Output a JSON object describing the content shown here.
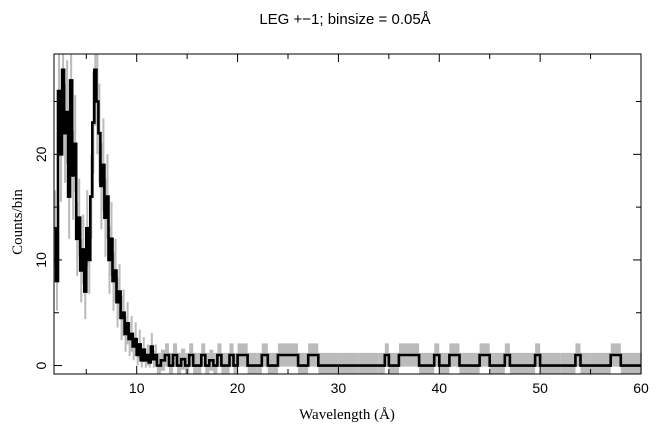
{
  "chart_data": {
    "type": "line",
    "title": "LEG +−1; binsize = 0.05Å",
    "xlabel": "Wavelength (Å)",
    "ylabel": "Counts/bin",
    "xlim": [
      1.8,
      60
    ],
    "ylim": [
      -0.8,
      29.5
    ],
    "xticks": [
      10,
      20,
      30,
      40,
      50,
      60
    ],
    "yticks": [
      0,
      10,
      20
    ],
    "grid": false,
    "legend": "none",
    "colors": {
      "counts": "#000000",
      "errors": "#bbbbbb"
    },
    "series": [
      {
        "x": [
          1.8,
          2.0,
          2.2,
          2.4,
          2.6,
          2.8,
          3.0,
          3.2,
          3.4,
          3.6,
          3.8,
          4.0,
          4.2,
          4.4,
          4.6,
          4.8,
          5.0,
          5.2,
          5.4,
          5.6,
          5.8,
          6.0,
          6.2,
          6.4,
          6.6,
          6.8,
          7.0,
          7.2,
          7.4,
          7.6,
          7.8,
          8.0,
          8.2,
          8.4,
          8.6,
          8.8,
          9.0,
          9.2,
          9.4,
          9.6,
          9.8,
          10.0,
          10.2,
          10.4,
          10.6,
          10.8,
          11.0,
          11.2,
          11.4,
          11.6,
          11.8,
          12.0,
          12.4,
          12.8,
          13.2,
          13.6,
          14.0,
          14.4,
          14.8,
          15.2,
          15.6,
          16.0,
          16.4,
          16.8,
          17.2,
          17.6,
          18.0,
          18.4,
          18.8,
          19.2,
          19.6,
          20.0,
          21.0,
          22.0,
          22.4,
          23.0,
          24.0,
          25.0,
          26.0,
          27.0,
          28.0,
          30.0,
          32.0,
          34.0,
          34.6,
          35.0,
          36.0,
          38.0,
          39.5,
          40.0,
          41.0,
          42.0,
          43.0,
          44.0,
          45.0,
          46.5,
          47.0,
          48.0,
          49.5,
          50.0,
          52.0,
          53.5,
          54.0,
          55.0,
          57.0,
          58.0,
          60.0
        ],
        "y": [
          13,
          8,
          26,
          20,
          28,
          22,
          24,
          16,
          27,
          18,
          21,
          12,
          14,
          9,
          11,
          7,
          13,
          10,
          16,
          23,
          28,
          25,
          22,
          17,
          19,
          14,
          16,
          10,
          12,
          8,
          9,
          6,
          7,
          4.5,
          5,
          3,
          4,
          2.5,
          3,
          1.8,
          2.5,
          1,
          2,
          0.5,
          1.5,
          0.5,
          1,
          0.3,
          1.8,
          0.6,
          1,
          0,
          0.5,
          1,
          0,
          1,
          0,
          0.6,
          0,
          1,
          0,
          0,
          1,
          0,
          0.5,
          0,
          1,
          0,
          0,
          1,
          0,
          1,
          0,
          0,
          1,
          0,
          1,
          1,
          0,
          1,
          0,
          0,
          0,
          0,
          1,
          0,
          1,
          0,
          1,
          0,
          1,
          0,
          0,
          1,
          0,
          1,
          0,
          0,
          1,
          0,
          0,
          1,
          0,
          0,
          1,
          0,
          0
        ],
        "err": [
          3.6,
          2.8,
          5.1,
          4.5,
          5.3,
          4.7,
          4.9,
          4.0,
          5.2,
          4.2,
          4.6,
          3.5,
          3.7,
          3.0,
          3.3,
          2.6,
          3.6,
          3.2,
          4.0,
          4.8,
          5.3,
          5.0,
          4.7,
          4.1,
          4.4,
          3.7,
          4.0,
          3.2,
          3.5,
          2.8,
          3.0,
          2.4,
          2.6,
          2.1,
          2.2,
          1.7,
          2.0,
          1.6,
          1.7,
          1.3,
          1.6,
          1.0,
          1.4,
          0.7,
          1.2,
          0.7,
          1.0,
          0.5,
          1.3,
          0.8,
          1.0,
          1.2,
          1.0,
          1.1,
          1.2,
          1.1,
          1.2,
          1.0,
          1.2,
          1.1,
          1.2,
          1.2,
          1.1,
          1.2,
          1.0,
          1.2,
          1.1,
          1.2,
          1.2,
          1.1,
          1.2,
          1.1,
          1.2,
          1.2,
          1.1,
          1.2,
          1.1,
          1.1,
          1.2,
          1.1,
          1.2,
          1.2,
          1.2,
          1.2,
          1.1,
          1.2,
          1.1,
          1.2,
          1.1,
          1.2,
          1.1,
          1.2,
          1.2,
          1.1,
          1.2,
          1.1,
          1.2,
          1.2,
          1.1,
          1.2,
          1.2,
          1.1,
          1.2,
          1.2,
          1.1,
          1.2,
          1.2
        ]
      }
    ]
  }
}
